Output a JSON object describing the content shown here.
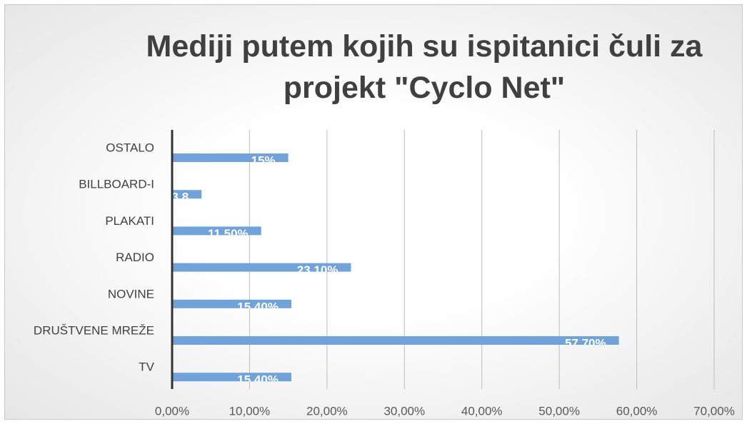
{
  "chart_data": {
    "type": "barh",
    "title": "Mediji putem kojih su ispitanici čuli za projekt \"Cyclo Net\"",
    "categories": [
      "OSTALO",
      "BILLBOARD-I",
      "PLAKATI",
      "RADIO",
      "NOVINE",
      "DRUŠTVENE MREŽE",
      "TV"
    ],
    "values": [
      15,
      3.8,
      11.5,
      23.1,
      15.4,
      57.7,
      15.4
    ],
    "value_labels": [
      "15%",
      "3,8",
      "11,50%",
      "23,10%",
      "15,40%",
      "57,70%",
      "15,40%"
    ],
    "color": "#70a3d9",
    "xlim": [
      0,
      70
    ],
    "xticks": [
      {
        "value": 0,
        "label": "0,00%"
      },
      {
        "value": 10,
        "label": "10,00%"
      },
      {
        "value": 20,
        "label": "20,00%"
      },
      {
        "value": 30,
        "label": "30,00%"
      },
      {
        "value": 40,
        "label": "40,00%"
      },
      {
        "value": 50,
        "label": "50,00%"
      },
      {
        "value": 60,
        "label": "60,00%"
      },
      {
        "value": 70,
        "label": "70,00%"
      }
    ],
    "grid": true
  }
}
